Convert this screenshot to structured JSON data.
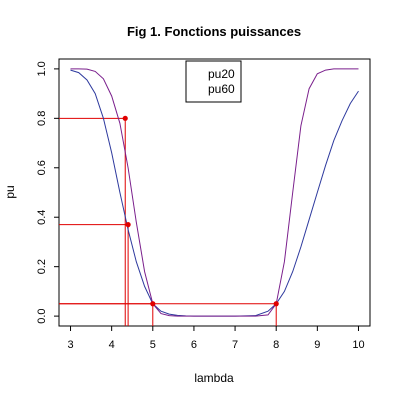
{
  "chart_data": {
    "type": "line",
    "title": "Fig 1. Fonctions puissances",
    "xlabel": "lambda",
    "ylabel": "pu",
    "xlim": [
      2.72,
      10.28
    ],
    "ylim": [
      -0.04,
      1.04
    ],
    "x_ticks": [
      3,
      4,
      5,
      6,
      7,
      8,
      9,
      10
    ],
    "y_ticks": [
      0.0,
      0.2,
      0.4,
      0.6,
      0.8,
      1.0
    ],
    "x_tick_labels": [
      "3",
      "4",
      "5",
      "6",
      "7",
      "8",
      "9",
      "10"
    ],
    "y_tick_labels": [
      "0.0",
      "0.2",
      "0.4",
      "0.6",
      "0.8",
      "1.0"
    ],
    "legend": {
      "position": "top-center",
      "entries": [
        {
          "label": "pu20",
          "color": "#2e3a9e"
        },
        {
          "label": "pu60",
          "color": "#7a1f8c"
        }
      ]
    },
    "series": [
      {
        "name": "pu20",
        "color": "#2e3a9e",
        "x": [
          3.0,
          3.2,
          3.4,
          3.6,
          3.8,
          4.0,
          4.2,
          4.4,
          4.6,
          4.8,
          5.0,
          5.2,
          5.4,
          5.6,
          5.8,
          6.0,
          6.5,
          7.0,
          7.5,
          7.8,
          8.0,
          8.2,
          8.4,
          8.6,
          8.8,
          9.0,
          9.2,
          9.4,
          9.6,
          9.8,
          10.0
        ],
        "y": [
          0.995,
          0.985,
          0.955,
          0.9,
          0.8,
          0.66,
          0.5,
          0.35,
          0.22,
          0.12,
          0.05,
          0.02,
          0.008,
          0.003,
          0.001,
          0.0,
          0.0,
          0.0,
          0.002,
          0.02,
          0.05,
          0.1,
          0.18,
          0.28,
          0.39,
          0.5,
          0.61,
          0.71,
          0.79,
          0.86,
          0.91
        ]
      },
      {
        "name": "pu60",
        "color": "#7a1f8c",
        "x": [
          3.0,
          3.2,
          3.4,
          3.6,
          3.8,
          4.0,
          4.2,
          4.4,
          4.6,
          4.8,
          5.0,
          5.2,
          5.4,
          5.6,
          5.8,
          6.0,
          6.5,
          7.0,
          7.5,
          7.8,
          8.0,
          8.2,
          8.4,
          8.6,
          8.8,
          9.0,
          9.2,
          9.4,
          9.6,
          9.8,
          10.0
        ],
        "y": [
          1.0,
          1.0,
          0.999,
          0.99,
          0.96,
          0.89,
          0.78,
          0.6,
          0.38,
          0.18,
          0.05,
          0.01,
          0.002,
          0.0,
          0.0,
          0.0,
          0.0,
          0.0,
          0.0,
          0.005,
          0.05,
          0.22,
          0.5,
          0.77,
          0.92,
          0.98,
          0.995,
          1.0,
          1.0,
          1.0,
          1.0
        ]
      }
    ],
    "reference_points": [
      {
        "x": 4.33,
        "y": 0.8
      },
      {
        "x": 4.4,
        "y": 0.37
      },
      {
        "x": 5.0,
        "y": 0.05
      },
      {
        "x": 8.0,
        "y": 0.05
      }
    ],
    "reference_color": "#e00000"
  }
}
